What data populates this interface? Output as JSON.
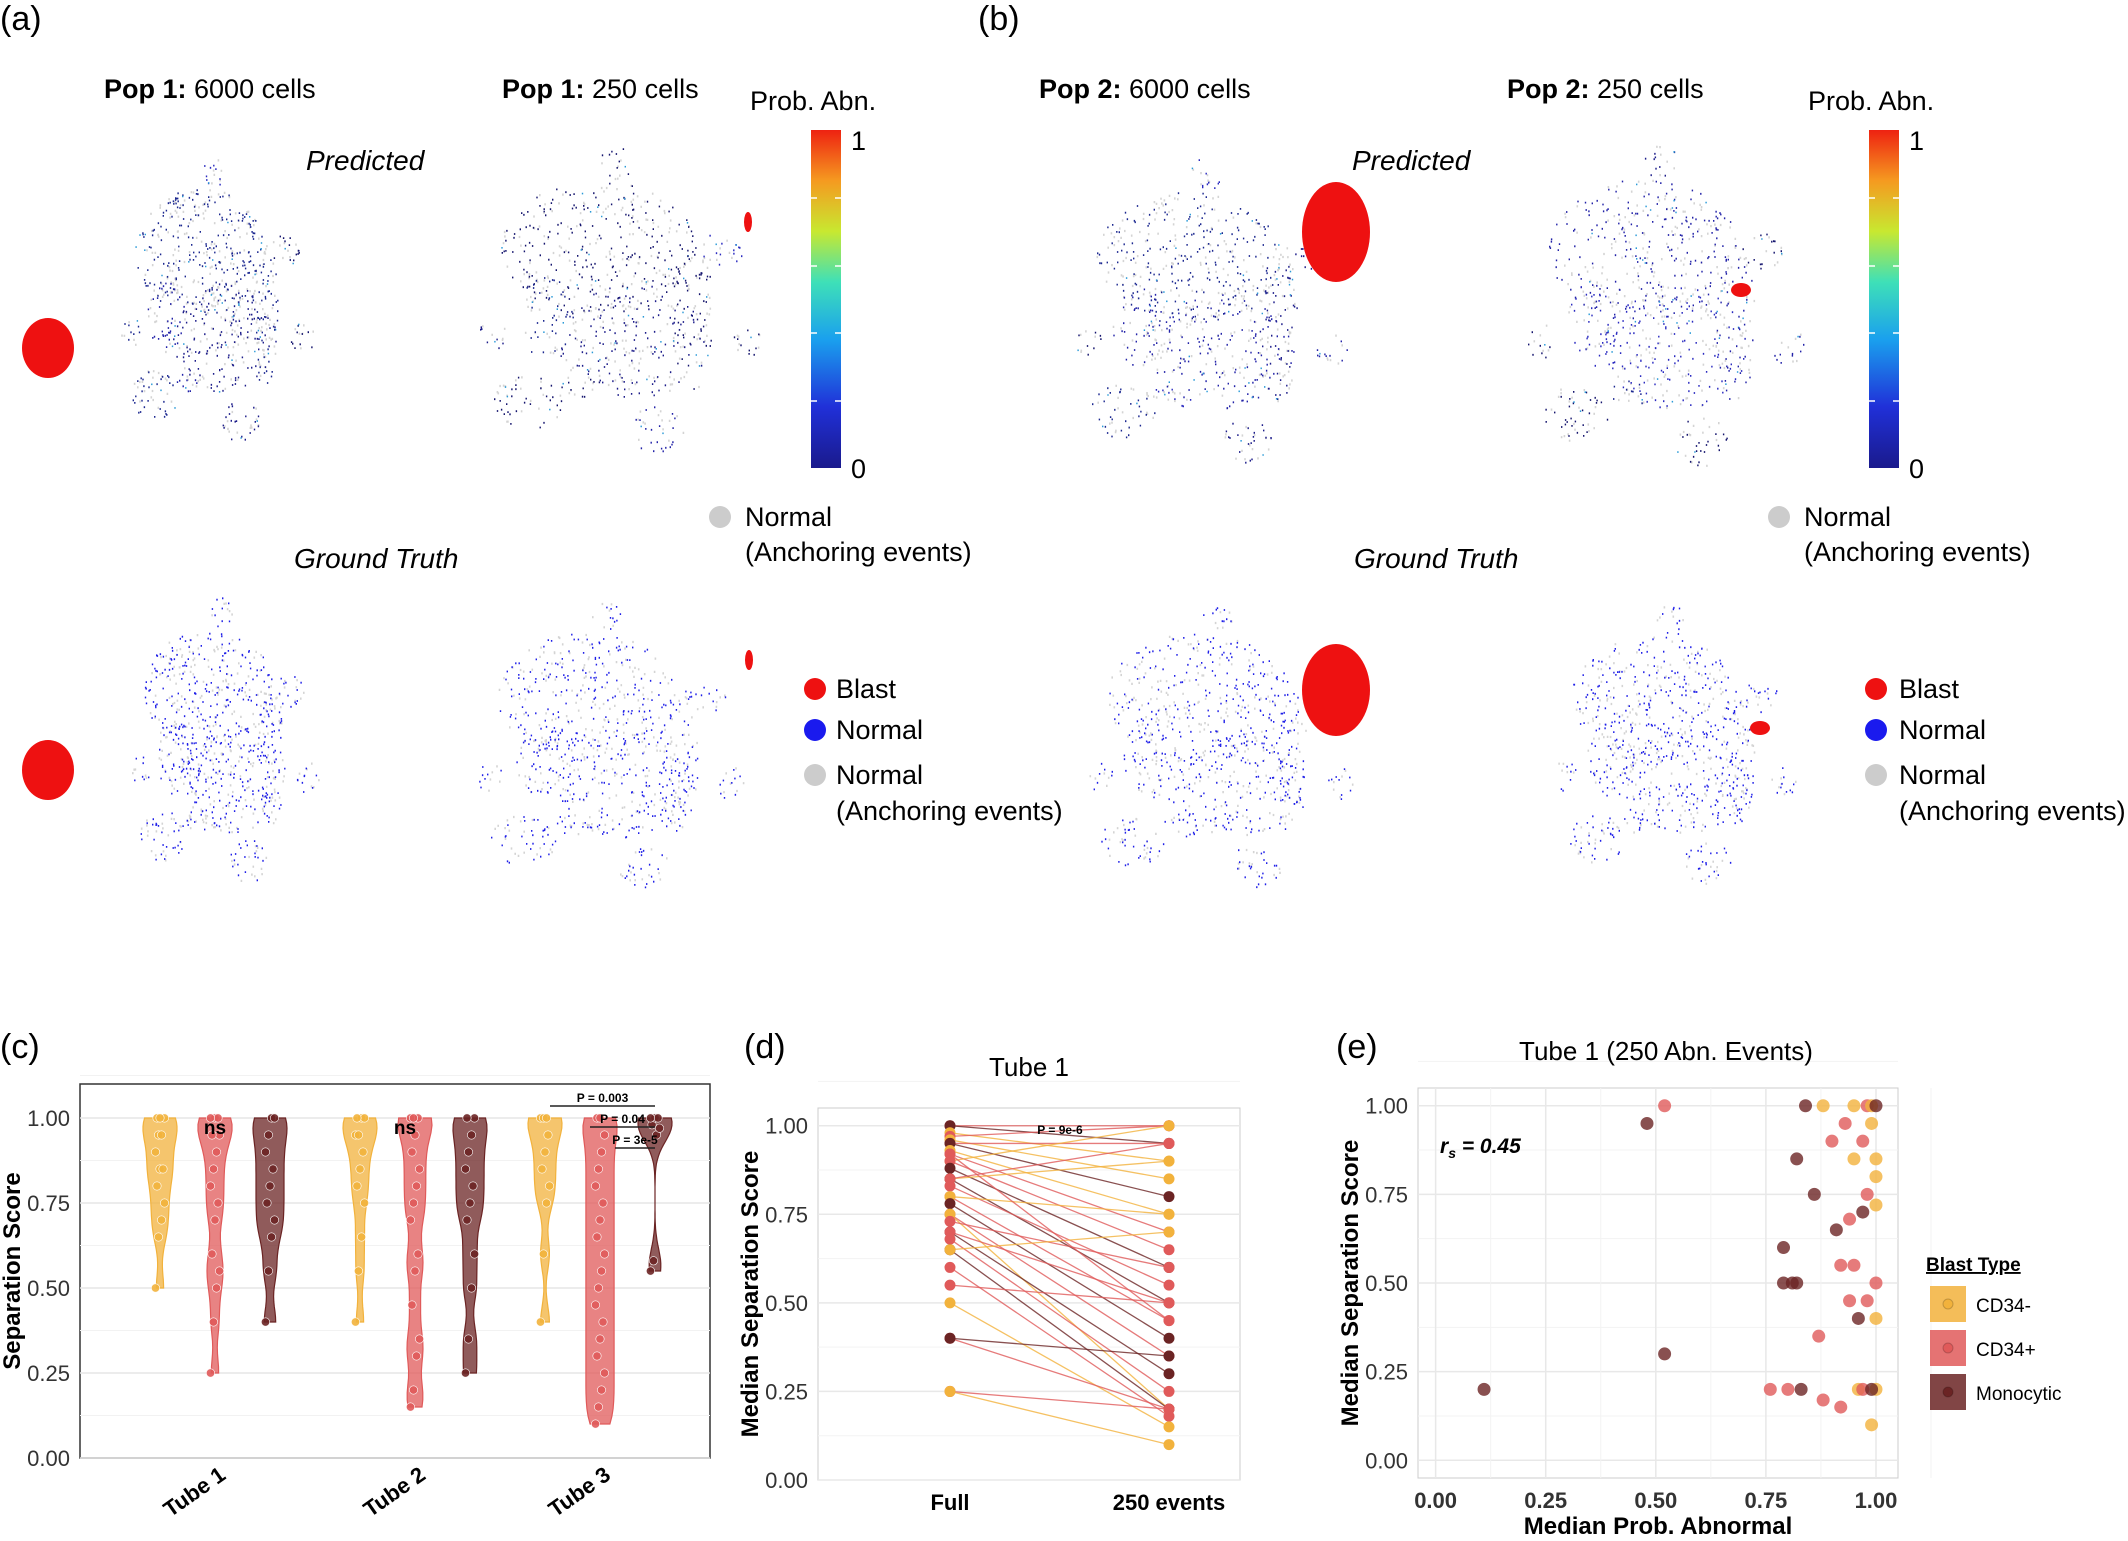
{
  "panel_letters": {
    "a": "(a)",
    "b": "(b)",
    "c": "(c)",
    "d": "(d)",
    "e": "(e)"
  },
  "top": {
    "pop1_6000": {
      "bold": "Pop 1:",
      "rest": " 6000 cells"
    },
    "pop1_250": {
      "bold": "Pop 1:",
      "rest": " 250 cells"
    },
    "pop2_6000": {
      "bold": "Pop 2:",
      "rest": " 6000 cells"
    },
    "pop2_250": {
      "bold": "Pop 2:",
      "rest": " 250 cells"
    },
    "predicted": "Predicted",
    "ground_truth": "Ground Truth",
    "colorbar_title": "Prob. Abn.",
    "colorbar_max": "1",
    "colorbar_min": "0",
    "legend_normal_anchor_1": "Normal",
    "legend_normal_anchor_2": "(Anchoring events)",
    "legend_blast": "Blast",
    "legend_normal": "Normal",
    "colors": {
      "blast": "#ee1111",
      "normal": "#1a1aee",
      "anchor": "#cccccc",
      "cmap_low": "#1f1f8f",
      "cmap_high": "#ee2211"
    }
  },
  "chart_data": [
    {
      "id": "c",
      "type": "violin",
      "ylabel": "Separation Score",
      "categories": [
        "Tube 1",
        "Tube 2",
        "Tube 3"
      ],
      "ylim": [
        0,
        1.1
      ],
      "yticks": [
        "0.00",
        "0.25",
        "0.50",
        "0.75",
        "1.00"
      ],
      "ytick_values": [
        0,
        0.25,
        0.5,
        0.75,
        1.0
      ],
      "grid": true,
      "series": [
        {
          "name": "CD34-",
          "color": "#f2b23c",
          "values": [
            [
              0.5,
              0.65,
              0.7,
              0.75,
              0.8,
              0.85,
              0.85,
              0.9,
              0.95,
              0.95,
              1.0,
              1.0,
              1.0
            ],
            [
              0.4,
              0.55,
              0.65,
              0.75,
              0.8,
              0.85,
              0.9,
              0.95,
              0.95,
              1.0,
              1.0,
              1.0
            ],
            [
              0.4,
              0.6,
              0.75,
              0.8,
              0.85,
              0.9,
              0.95,
              1.0,
              1.0,
              1.0
            ]
          ]
        },
        {
          "name": "CD34+",
          "color": "#e05a5a",
          "values": [
            [
              0.25,
              0.4,
              0.5,
              0.55,
              0.6,
              0.7,
              0.75,
              0.8,
              0.85,
              0.9,
              0.95,
              0.95,
              1.0,
              1.0,
              1.0
            ],
            [
              0.15,
              0.2,
              0.3,
              0.35,
              0.45,
              0.55,
              0.6,
              0.7,
              0.75,
              0.8,
              0.85,
              0.9,
              0.95,
              1.0,
              1.0,
              1.0
            ],
            [
              0.1,
              0.15,
              0.2,
              0.25,
              0.3,
              0.35,
              0.4,
              0.45,
              0.5,
              0.55,
              0.6,
              0.65,
              0.7,
              0.75,
              0.8,
              0.85,
              0.9,
              0.95,
              1.0,
              1.0
            ]
          ]
        },
        {
          "name": "Monocytic",
          "color": "#6b2424",
          "values": [
            [
              0.4,
              0.55,
              0.65,
              0.7,
              0.75,
              0.8,
              0.85,
              0.9,
              0.95,
              1.0,
              1.0
            ],
            [
              0.25,
              0.35,
              0.5,
              0.6,
              0.7,
              0.75,
              0.8,
              0.85,
              0.9,
              0.95,
              1.0,
              1.0
            ],
            [
              0.55,
              0.58,
              0.95,
              0.97,
              0.98,
              1.0,
              1.0,
              1.0
            ]
          ]
        }
      ],
      "annotations": {
        "tube1": "ns",
        "tube2": "ns",
        "tube3": [
          "P = 0.003",
          "P = 0.04",
          "P = 3e-5"
        ]
      }
    },
    {
      "id": "d",
      "type": "paired-line",
      "title": "Tube 1",
      "ylabel": "Median Separation Score",
      "categories": [
        "Full",
        "250 events"
      ],
      "ylim": [
        0,
        1.05
      ],
      "yticks": [
        "0.00",
        "0.25",
        "0.50",
        "0.75",
        "1.00"
      ],
      "ytick_values": [
        0,
        0.25,
        0.5,
        0.75,
        1.0
      ],
      "annotation": "P = 9e-6",
      "pairs": [
        [
          1.0,
          1.0,
          "CD34+"
        ],
        [
          1.0,
          0.95,
          "Monocytic"
        ],
        [
          0.98,
          0.9,
          "CD34-"
        ],
        [
          0.97,
          1.0,
          "CD34+"
        ],
        [
          0.96,
          0.85,
          "CD34-"
        ],
        [
          0.95,
          0.95,
          "CD34+"
        ],
        [
          0.95,
          0.8,
          "Monocytic"
        ],
        [
          0.93,
          0.75,
          "CD34-"
        ],
        [
          0.92,
          0.7,
          "CD34+"
        ],
        [
          0.9,
          1.0,
          "CD34-"
        ],
        [
          0.9,
          0.65,
          "CD34+"
        ],
        [
          0.88,
          0.6,
          "Monocytic"
        ],
        [
          0.85,
          0.9,
          "CD34-"
        ],
        [
          0.85,
          0.5,
          "Monocytic"
        ],
        [
          0.83,
          0.55,
          "CD34+"
        ],
        [
          0.8,
          0.45,
          "CD34+"
        ],
        [
          0.8,
          0.75,
          "CD34-"
        ],
        [
          0.78,
          0.4,
          "Monocytic"
        ],
        [
          0.75,
          0.35,
          "CD34+"
        ],
        [
          0.75,
          0.2,
          "CD34-"
        ],
        [
          0.73,
          0.6,
          "CD34+"
        ],
        [
          0.7,
          0.3,
          "Monocytic"
        ],
        [
          0.7,
          0.5,
          "CD34+"
        ],
        [
          0.68,
          0.25,
          "CD34+"
        ],
        [
          0.65,
          0.2,
          "Monocytic"
        ],
        [
          0.65,
          0.7,
          "CD34-"
        ],
        [
          0.6,
          0.18,
          "CD34+"
        ],
        [
          0.55,
          0.5,
          "CD34+"
        ],
        [
          0.5,
          0.15,
          "CD34-"
        ],
        [
          0.4,
          0.2,
          "CD34+"
        ],
        [
          0.4,
          0.35,
          "Monocytic"
        ],
        [
          0.25,
          0.2,
          "CD34+"
        ],
        [
          0.25,
          0.1,
          "CD34-"
        ],
        [
          0.85,
          0.95,
          "CD34+"
        ],
        [
          0.92,
          0.45,
          "CD34+"
        ]
      ]
    },
    {
      "id": "e",
      "type": "scatter",
      "title": "Tube 1 (250 Abn. Events)",
      "xlabel": "Median Prob. Abnormal",
      "ylabel": "Median Separation Score",
      "xlim": [
        -0.04,
        1.05
      ],
      "ylim": [
        -0.05,
        1.05
      ],
      "xticks": [
        "0.00",
        "0.25",
        "0.50",
        "0.75",
        "1.00"
      ],
      "xtick_values": [
        0,
        0.25,
        0.5,
        0.75,
        1.0
      ],
      "yticks": [
        "0.00",
        "0.25",
        "0.50",
        "0.75",
        "1.00"
      ],
      "ytick_values": [
        0,
        0.25,
        0.5,
        0.75,
        1.0
      ],
      "annotation_r": "r",
      "annotation_sub": "s",
      "annotation_val": " = 0.45",
      "legend_title": "Blast Type",
      "legend_placement": "right",
      "points": [
        [
          0.11,
          0.2,
          "Monocytic"
        ],
        [
          0.48,
          0.95,
          "Monocytic"
        ],
        [
          0.52,
          1.0,
          "CD34+"
        ],
        [
          0.52,
          0.3,
          "Monocytic"
        ],
        [
          0.76,
          0.2,
          "CD34+"
        ],
        [
          0.79,
          0.6,
          "Monocytic"
        ],
        [
          0.79,
          0.5,
          "Monocytic"
        ],
        [
          0.8,
          0.2,
          "CD34+"
        ],
        [
          0.81,
          0.5,
          "Monocytic"
        ],
        [
          0.82,
          0.85,
          "Monocytic"
        ],
        [
          0.82,
          0.5,
          "Monocytic"
        ],
        [
          0.83,
          0.2,
          "Monocytic"
        ],
        [
          0.84,
          1.0,
          "Monocytic"
        ],
        [
          0.86,
          0.75,
          "Monocytic"
        ],
        [
          0.87,
          0.35,
          "CD34+"
        ],
        [
          0.88,
          0.17,
          "CD34+"
        ],
        [
          0.88,
          1.0,
          "CD34-"
        ],
        [
          0.9,
          0.9,
          "CD34+"
        ],
        [
          0.91,
          0.65,
          "Monocytic"
        ],
        [
          0.92,
          0.15,
          "CD34+"
        ],
        [
          0.93,
          0.95,
          "CD34+"
        ],
        [
          0.94,
          0.45,
          "CD34+"
        ],
        [
          0.94,
          0.68,
          "CD34+"
        ],
        [
          0.95,
          0.85,
          "CD34-"
        ],
        [
          0.95,
          1.0,
          "CD34-"
        ],
        [
          0.96,
          0.4,
          "Monocytic"
        ],
        [
          0.96,
          0.2,
          "CD34-"
        ],
        [
          0.97,
          0.7,
          "Monocytic"
        ],
        [
          0.97,
          0.9,
          "CD34+"
        ],
        [
          0.97,
          0.2,
          "CD34+"
        ],
        [
          0.98,
          1.0,
          "CD34+"
        ],
        [
          0.98,
          0.75,
          "CD34+"
        ],
        [
          0.98,
          0.45,
          "CD34+"
        ],
        [
          0.99,
          1.0,
          "CD34-"
        ],
        [
          0.99,
          0.95,
          "CD34-"
        ],
        [
          0.99,
          0.1,
          "CD34-"
        ],
        [
          1.0,
          0.72,
          "CD34-"
        ],
        [
          1.0,
          0.4,
          "CD34-"
        ],
        [
          1.0,
          0.2,
          "CD34-"
        ],
        [
          1.0,
          0.85,
          "CD34-"
        ],
        [
          1.0,
          0.5,
          "CD34+"
        ],
        [
          1.0,
          0.8,
          "CD34-"
        ],
        [
          1.0,
          1.0,
          "Monocytic"
        ],
        [
          0.99,
          0.2,
          "Monocytic"
        ],
        [
          0.95,
          0.55,
          "CD34+"
        ],
        [
          0.92,
          0.55,
          "CD34+"
        ]
      ]
    }
  ],
  "blast_types": [
    {
      "name": "CD34-",
      "color": "#f2b23c"
    },
    {
      "name": "CD34+",
      "color": "#e05a5a"
    },
    {
      "name": "Monocytic",
      "color": "#6b2424"
    }
  ]
}
